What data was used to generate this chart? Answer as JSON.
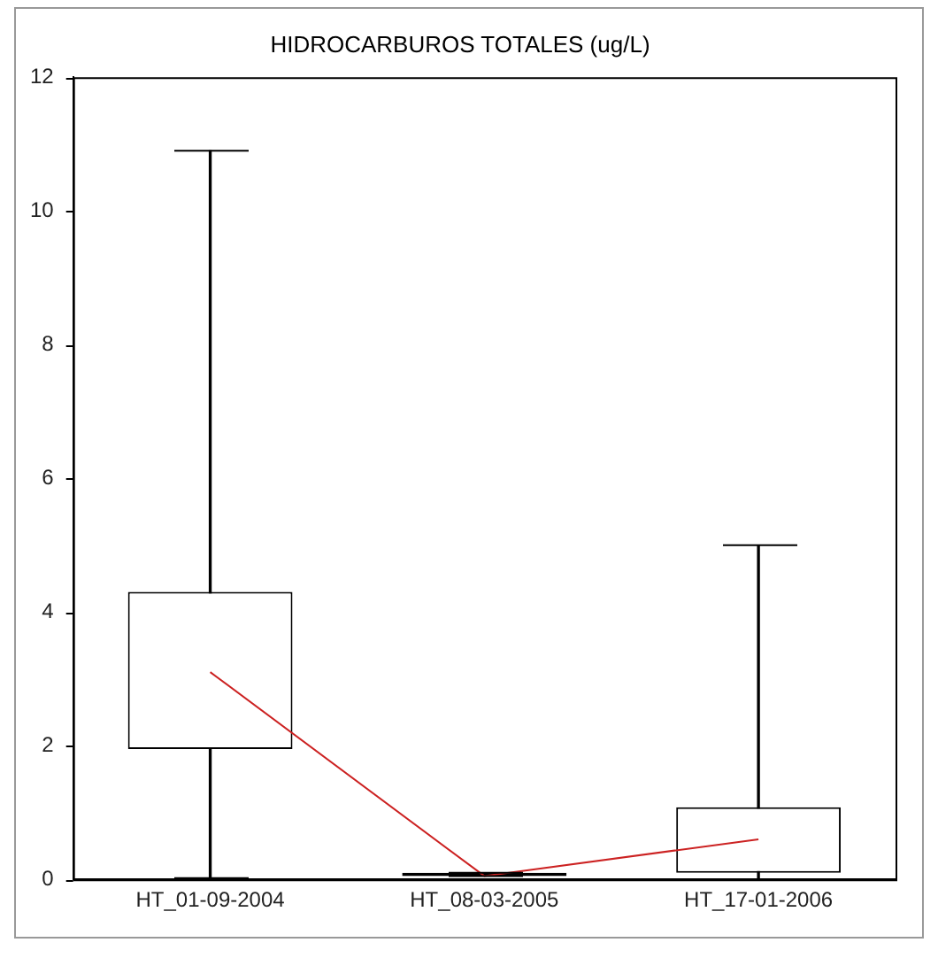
{
  "chart_data": {
    "type": "box",
    "title": "HIDROCARBUROS TOTALES (ug/L)",
    "categories": [
      "HT_01-09-2004",
      "HT_08-03-2005",
      "HT_17-01-2006"
    ],
    "boxes": [
      {
        "low": 0.02,
        "q1": 1.95,
        "q3": 4.3,
        "high": 10.9
      },
      {
        "low": 0.05,
        "q1": 0.05,
        "q3": 0.1,
        "high": 0.1
      },
      {
        "low": 0,
        "q1": 0.1,
        "q3": 1.08,
        "high": 5
      }
    ],
    "series": [
      {
        "type": "line",
        "color": "#cc2222",
        "values": [
          3.1,
          0.05,
          0.6
        ]
      }
    ],
    "ylim": [
      0,
      12
    ],
    "yticks": [
      0,
      2,
      4,
      6,
      8,
      10,
      12
    ],
    "legend": false
  }
}
